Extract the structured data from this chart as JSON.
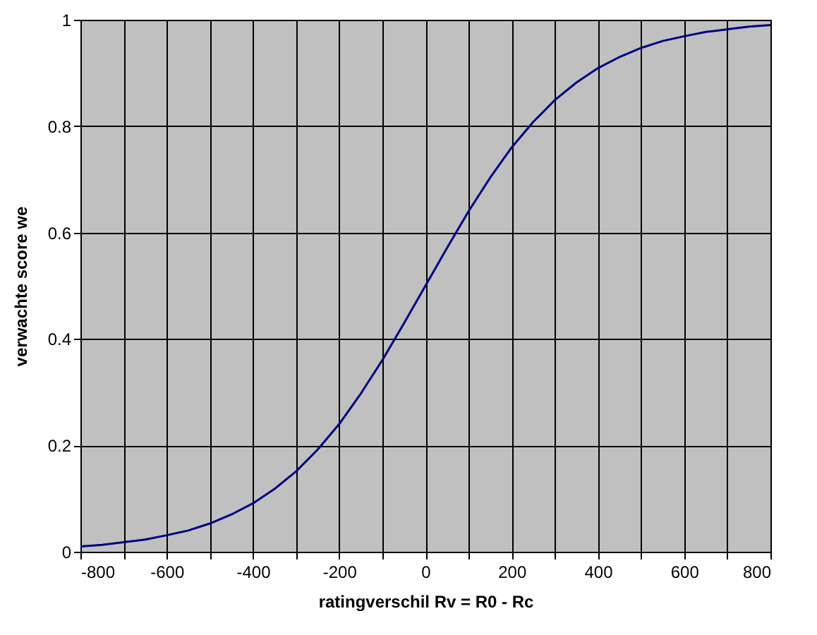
{
  "chart_data": {
    "type": "line",
    "xlabel": "ratingverschil Rv = R0 - Rc",
    "ylabel": "verwachte score we",
    "x": [
      -800,
      -750,
      -700,
      -650,
      -600,
      -550,
      -500,
      -450,
      -400,
      -350,
      -300,
      -250,
      -200,
      -150,
      -100,
      -50,
      0,
      50,
      100,
      150,
      200,
      250,
      300,
      350,
      400,
      450,
      500,
      550,
      600,
      650,
      700,
      750,
      800
    ],
    "series": [
      {
        "color": "#000080",
        "values": [
          0.01,
          0.013,
          0.018,
          0.023,
          0.031,
          0.04,
          0.053,
          0.07,
          0.091,
          0.118,
          0.151,
          0.192,
          0.24,
          0.297,
          0.36,
          0.429,
          0.5,
          0.571,
          0.64,
          0.703,
          0.76,
          0.808,
          0.849,
          0.882,
          0.909,
          0.93,
          0.947,
          0.96,
          0.969,
          0.977,
          0.982,
          0.987,
          0.99
        ]
      }
    ],
    "xlim": [
      -800,
      800
    ],
    "xticks": [
      -800,
      {
        "value": -700,
        "label": null
      },
      -600,
      {
        "value": -500,
        "label": null
      },
      -400,
      {
        "value": -300,
        "label": null
      },
      -200,
      {
        "value": -100,
        "label": null
      },
      0,
      {
        "value": 100,
        "label": null
      },
      200,
      {
        "value": 300,
        "label": null
      },
      400,
      {
        "value": 500,
        "label": null
      },
      600,
      {
        "value": 700,
        "label": null
      },
      800
    ],
    "ylim": [
      0,
      1
    ],
    "yticks": [
      0,
      0.2,
      0.4,
      0.6,
      0.8,
      1
    ],
    "grid": true,
    "legend": false,
    "marker": "none",
    "line_style": "solid"
  }
}
